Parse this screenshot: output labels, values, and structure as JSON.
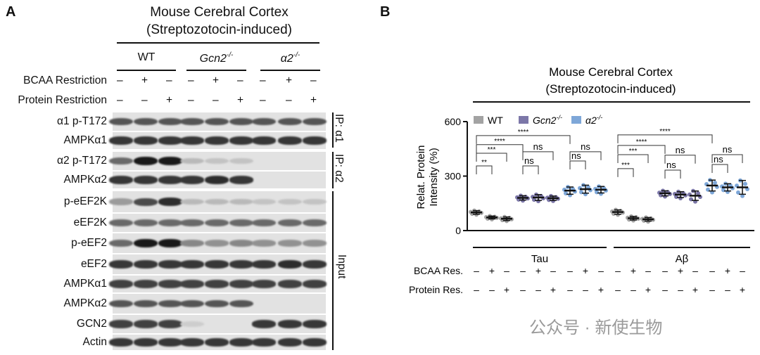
{
  "panel_a": {
    "label": "A",
    "title_line1": "Mouse Cerebral Cortex",
    "title_line2": "(Streptozotocin-induced)",
    "genotypes": [
      "WT",
      "Gcn2",
      "α2"
    ],
    "genotype_superscript": "-/-",
    "bcaa_label": "BCAA Restriction",
    "protein_label": "Protein Restriction",
    "bcaa_signs": [
      "–",
      "+",
      "–",
      "–",
      "+",
      "–",
      "–",
      "+",
      "–"
    ],
    "protein_signs": [
      "–",
      "–",
      "+",
      "–",
      "–",
      "+",
      "–",
      "–",
      "+"
    ],
    "ip_a1_label": "IP: α1",
    "ip_a2_label": "IP: α2",
    "input_label": "Input",
    "rows": [
      {
        "label": "α1 p-T172",
        "intensity": [
          0.7,
          0.7,
          0.7,
          0.7,
          0.7,
          0.7,
          0.7,
          0.7,
          0.7
        ]
      },
      {
        "label": "AMPKα1",
        "intensity": [
          0.85,
          0.85,
          0.85,
          0.85,
          0.85,
          0.85,
          0.85,
          0.85,
          0.85
        ]
      },
      {
        "label": "α2 p-T172",
        "intensity": [
          0.6,
          1.0,
          1.0,
          0.2,
          0.15,
          0.15,
          0,
          0,
          0
        ]
      },
      {
        "label": "AMPKα2",
        "intensity": [
          0.85,
          0.85,
          0.85,
          0.85,
          0.9,
          0.85,
          0,
          0,
          0
        ]
      },
      {
        "label": "p-eEF2K",
        "intensity": [
          0.35,
          0.75,
          0.9,
          0.2,
          0.2,
          0.2,
          0.15,
          0.15,
          0.15
        ]
      },
      {
        "label": "eEF2K",
        "intensity": [
          0.6,
          0.6,
          0.6,
          0.6,
          0.6,
          0.6,
          0.6,
          0.6,
          0.6
        ]
      },
      {
        "label": "p-eEF2",
        "intensity": [
          0.6,
          1.0,
          1.0,
          0.45,
          0.4,
          0.45,
          0.4,
          0.4,
          0.4
        ]
      },
      {
        "label": "eEF2",
        "intensity": [
          0.85,
          0.85,
          0.85,
          0.85,
          0.85,
          0.85,
          0.85,
          0.9,
          0.85
        ]
      },
      {
        "label": "AMPKα1",
        "intensity": [
          0.8,
          0.8,
          0.8,
          0.8,
          0.8,
          0.8,
          0.8,
          0.8,
          0.8
        ]
      },
      {
        "label": "AMPKα2",
        "intensity": [
          0.7,
          0.7,
          0.7,
          0.7,
          0.7,
          0.7,
          0,
          0,
          0
        ]
      },
      {
        "label": "GCN2",
        "intensity": [
          0.8,
          0.8,
          0.8,
          0.1,
          0,
          0,
          0.85,
          0.85,
          0.85
        ]
      },
      {
        "label": "Actin",
        "intensity": [
          0.85,
          0.85,
          0.85,
          0.85,
          0.85,
          0.85,
          0.85,
          0.85,
          0.85
        ]
      }
    ]
  },
  "chart_data": {
    "type": "scatter",
    "panel_label": "B",
    "title_line1": "Mouse Cerebral Cortex",
    "title_line2": "(Streptozotocin-induced)",
    "ylabel_line1": "Relat. Protein",
    "ylabel_line2": "Intensity (%)",
    "ylim": [
      0,
      600
    ],
    "yticks": [
      "0",
      "300",
      "600"
    ],
    "legend": [
      {
        "name": "WT",
        "color": "#a3a3a3"
      },
      {
        "name": "Gcn2",
        "sup": "-/-",
        "color": "#7c77a8"
      },
      {
        "name": "α2",
        "sup": "-/-",
        "color": "#7ea7d8"
      }
    ],
    "legend_position": "top-left",
    "groups": [
      {
        "name": "Tau",
        "means": [
          100,
          72,
          65,
          180,
          182,
          178,
          220,
          228,
          225
        ],
        "sd": [
          10,
          8,
          10,
          12,
          16,
          12,
          20,
          22,
          18
        ]
      },
      {
        "name": "Aβ",
        "means": [
          102,
          68,
          62,
          205,
          198,
          192,
          248,
          238,
          238
        ],
        "sd": [
          12,
          10,
          10,
          14,
          16,
          26,
          30,
          20,
          38
        ]
      }
    ],
    "series_per_condition": [
      0,
      0,
      0,
      1,
      1,
      1,
      2,
      2,
      2
    ],
    "bcaa_label": "BCAA Res.",
    "protein_label": "Protein  Res.",
    "bcaa_signs": [
      "–",
      "+",
      "–",
      "–",
      "+",
      "–",
      "–",
      "+",
      "–",
      "–",
      "+",
      "–",
      "–",
      "+",
      "–",
      "–",
      "+",
      "–"
    ],
    "protein_signs": [
      "–",
      "–",
      "+",
      "–",
      "–",
      "+",
      "–",
      "–",
      "+",
      "–",
      "–",
      "+",
      "–",
      "–",
      "+",
      "–",
      "–",
      "+"
    ],
    "brackets": [
      {
        "group": 0,
        "from": 0,
        "to": 1,
        "level": 356,
        "text": "**"
      },
      {
        "group": 0,
        "from": 0,
        "to": 2,
        "level": 426,
        "text": "***"
      },
      {
        "group": 0,
        "from": 0,
        "to": 3,
        "level": 473,
        "text": "****"
      },
      {
        "group": 0,
        "from": 0,
        "to": 6,
        "level": 523,
        "text": "****"
      },
      {
        "group": 0,
        "from": 3,
        "to": 4,
        "level": 356,
        "text": "ns"
      },
      {
        "group": 0,
        "from": 3,
        "to": 5,
        "level": 434,
        "text": "ns"
      },
      {
        "group": 0,
        "from": 6,
        "to": 7,
        "level": 383,
        "text": "ns"
      },
      {
        "group": 0,
        "from": 6,
        "to": 8,
        "level": 434,
        "text": "ns"
      },
      {
        "group": 1,
        "from": 0,
        "to": 1,
        "level": 341,
        "text": "***"
      },
      {
        "group": 1,
        "from": 0,
        "to": 2,
        "level": 418,
        "text": "***"
      },
      {
        "group": 1,
        "from": 0,
        "to": 3,
        "level": 469,
        "text": "****"
      },
      {
        "group": 1,
        "from": 0,
        "to": 6,
        "level": 527,
        "text": "****"
      },
      {
        "group": 1,
        "from": 3,
        "to": 4,
        "level": 333,
        "text": "ns"
      },
      {
        "group": 1,
        "from": 3,
        "to": 5,
        "level": 415,
        "text": "ns"
      },
      {
        "group": 1,
        "from": 6,
        "to": 7,
        "level": 364,
        "text": "ns"
      },
      {
        "group": 1,
        "from": 6,
        "to": 8,
        "level": 418,
        "text": "ns"
      }
    ]
  },
  "watermark": "公众号 · 新使生物"
}
